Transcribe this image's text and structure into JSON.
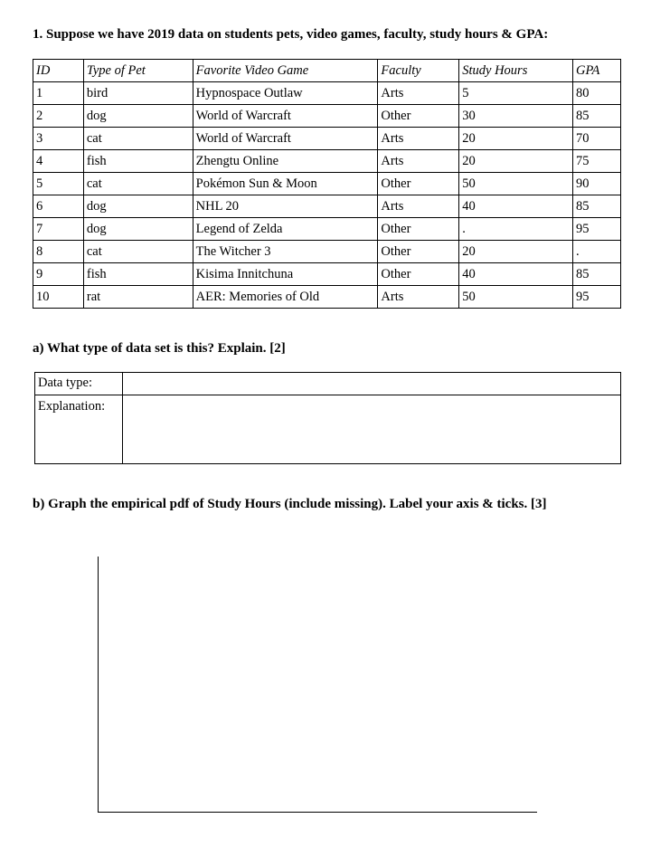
{
  "question1": "1. Suppose we have 2019 data on students pets, video games, faculty, study hours & GPA:",
  "table": {
    "headers": [
      "ID",
      "Type of Pet",
      "Favorite Video Game",
      "Faculty",
      "Study Hours",
      "GPA"
    ],
    "rows": [
      [
        "1",
        "bird",
        "Hypnospace Outlaw",
        "Arts",
        "5",
        "80"
      ],
      [
        "2",
        "dog",
        "World of Warcraft",
        "Other",
        "30",
        "85"
      ],
      [
        "3",
        "cat",
        "World of Warcraft",
        "Arts",
        "20",
        "70"
      ],
      [
        "4",
        "fish",
        "Zhengtu Online",
        "Arts",
        "20",
        "75"
      ],
      [
        "5",
        "cat",
        "Pokémon Sun & Moon",
        "Other",
        "50",
        "90"
      ],
      [
        "6",
        "dog",
        "NHL 20",
        "Arts",
        "40",
        "85"
      ],
      [
        "7",
        "dog",
        "Legend of Zelda",
        "Other",
        ".",
        "95"
      ],
      [
        "8",
        "cat",
        "The Witcher 3",
        "Other",
        "20",
        "."
      ],
      [
        "9",
        "fish",
        "Kisima Innitchuna",
        "Other",
        "40",
        "85"
      ],
      [
        "10",
        "rat",
        "AER: Memories of Old",
        "Arts",
        "50",
        "95"
      ]
    ]
  },
  "part_a": {
    "question": "a) What type of data set is this? Explain. [2]",
    "data_type_label": "Data type:",
    "explanation_label": "Explanation:"
  },
  "part_b": {
    "question": "b) Graph the empirical pdf of Study Hours (include missing). Label your axis & ticks. [3]"
  }
}
